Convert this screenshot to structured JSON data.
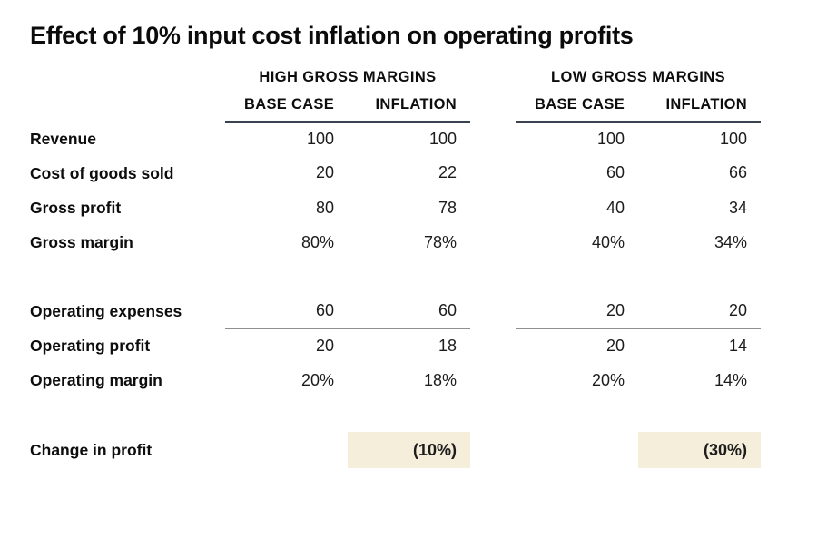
{
  "title": "Effect of 10% input cost inflation on operating profits",
  "colors": {
    "header_rule": "#3a4150",
    "thin_rule": "#8f8f8f",
    "highlight": "#f4eeda",
    "background": "#ffffff"
  },
  "table": {
    "groups": [
      {
        "label": "HIGH GROSS MARGINS",
        "columns": [
          "BASE CASE",
          "INFLATION"
        ]
      },
      {
        "label": "LOW GROSS MARGINS",
        "columns": [
          "BASE CASE",
          "INFLATION"
        ]
      }
    ],
    "rows": [
      {
        "label": "Revenue",
        "values": [
          "100",
          "100",
          "100",
          "100"
        ]
      },
      {
        "label": "Cost of goods sold",
        "values": [
          "20",
          "22",
          "60",
          "66"
        ]
      },
      {
        "label": "Gross profit",
        "values": [
          "80",
          "78",
          "40",
          "34"
        ]
      },
      {
        "label": "Gross margin",
        "values": [
          "80%",
          "78%",
          "40%",
          "34%"
        ]
      },
      {
        "label": "Operating expenses",
        "values": [
          "60",
          "60",
          "20",
          "20"
        ]
      },
      {
        "label": "Operating profit",
        "values": [
          "20",
          "18",
          "20",
          "14"
        ]
      },
      {
        "label": "Operating margin",
        "values": [
          "20%",
          "18%",
          "20%",
          "14%"
        ]
      },
      {
        "label": "Change in profit",
        "values": [
          "",
          "(10%)",
          "",
          "(30%)"
        ]
      }
    ]
  },
  "chart_data": {
    "type": "table",
    "title": "Effect of 10% input cost inflation on operating profits",
    "column_groups": [
      "HIGH GROSS MARGINS",
      "LOW GROSS MARGINS"
    ],
    "columns": [
      "HIGH BASE CASE",
      "HIGH INFLATION",
      "LOW BASE CASE",
      "LOW INFLATION"
    ],
    "rows": [
      {
        "label": "Revenue",
        "values": [
          100,
          100,
          100,
          100
        ]
      },
      {
        "label": "Cost of goods sold",
        "values": [
          20,
          22,
          60,
          66
        ]
      },
      {
        "label": "Gross profit",
        "values": [
          80,
          78,
          40,
          34
        ]
      },
      {
        "label": "Gross margin",
        "values": [
          "80%",
          "78%",
          "40%",
          "34%"
        ]
      },
      {
        "label": "Operating expenses",
        "values": [
          60,
          60,
          20,
          20
        ]
      },
      {
        "label": "Operating profit",
        "values": [
          20,
          18,
          20,
          14
        ]
      },
      {
        "label": "Operating margin",
        "values": [
          "20%",
          "18%",
          "20%",
          "14%"
        ]
      },
      {
        "label": "Change in profit",
        "values": [
          null,
          "(10%)",
          null,
          "(30%)"
        ]
      }
    ],
    "notes": "Highlighted cells: change in profit (10%) for high-margin inflation case, (30%) for low-margin inflation case"
  }
}
